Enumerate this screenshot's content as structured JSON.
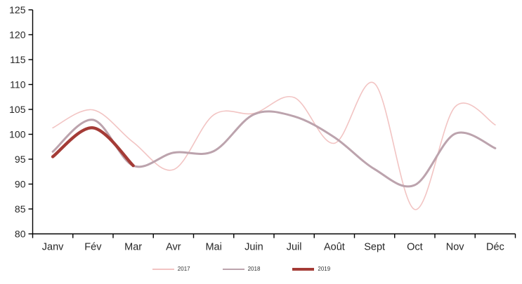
{
  "chart_data": {
    "type": "line",
    "title": "",
    "xlabel": "",
    "ylabel": "",
    "categories": [
      "Janv",
      "Fév",
      "Mar",
      "Avr",
      "Mai",
      "Juin",
      "Juil",
      "Août",
      "Sept",
      "Oct",
      "Nov",
      "Déc"
    ],
    "ylim": [
      80,
      125
    ],
    "ytick_step": 5,
    "ytick_labels": [
      "80",
      "85",
      "90",
      "95",
      "100",
      "105",
      "110",
      "115",
      "120",
      "125"
    ],
    "grid": false,
    "smooth_lines": true,
    "legend_position": "bottom-center",
    "axis_color": "#000000",
    "label_color": "#262626",
    "series": [
      {
        "name": "2017",
        "color": "#F2C4C3",
        "stroke_width": 1.6,
        "values": [
          101.3,
          104.9,
          98.4,
          92.9,
          103.9,
          104.2,
          107.4,
          98.2,
          110.2,
          84.9,
          105.5,
          101.9
        ]
      },
      {
        "name": "2018",
        "color": "#BCA3AD",
        "stroke_width": 3,
        "values": [
          96.5,
          102.9,
          93.7,
          96.3,
          96.6,
          104.0,
          103.6,
          99.4,
          93.0,
          89.8,
          100.1,
          97.2
        ]
      },
      {
        "name": "2019",
        "color": "#A43B36",
        "stroke_width": 4.4,
        "values": [
          95.5,
          101.3,
          93.7
        ]
      }
    ]
  }
}
